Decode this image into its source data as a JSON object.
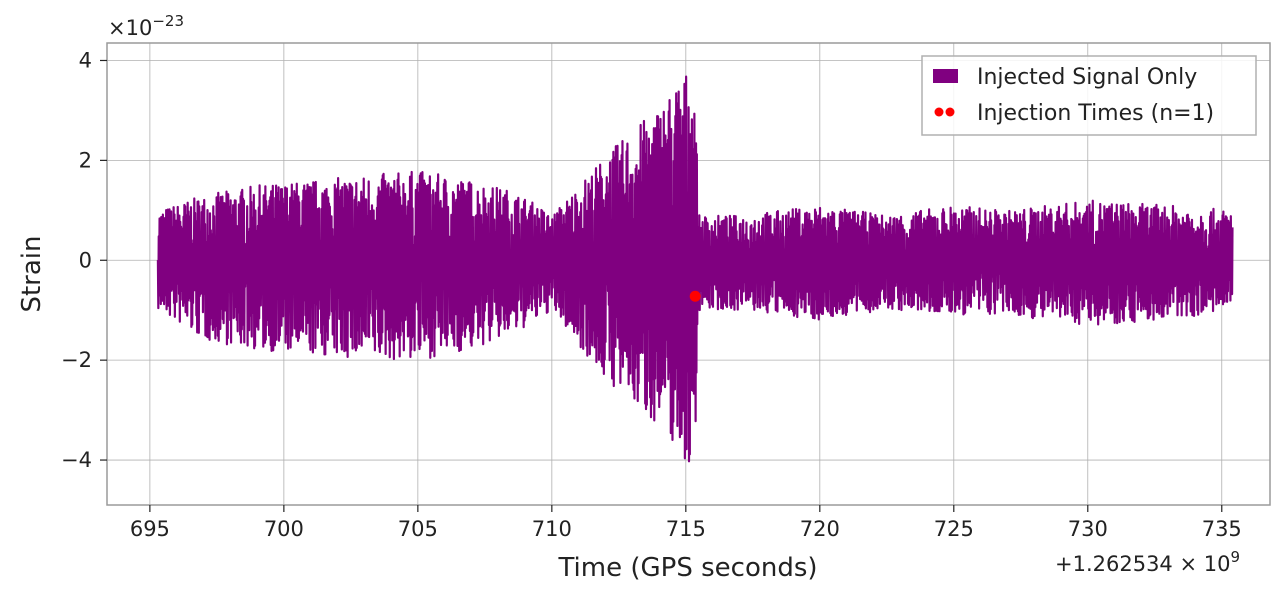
{
  "chart_data": {
    "type": "line",
    "xlabel": "Time (GPS seconds)",
    "ylabel": "Strain",
    "x_offset_label": "+1.262534 × 10",
    "x_offset_exp": "9",
    "x_offset": 1262534000,
    "y_scale_label": "×10",
    "y_scale_exp": "−23",
    "xlim": [
      693.4,
      736.8
    ],
    "ylim": [
      -4.9,
      4.35
    ],
    "x_ticks": [
      695,
      700,
      705,
      710,
      715,
      720,
      725,
      730,
      735
    ],
    "x_tick_labels": [
      "695",
      "700",
      "705",
      "710",
      "715",
      "720",
      "725",
      "730",
      "735"
    ],
    "y_ticks": [
      -4,
      -2,
      0,
      2,
      4
    ],
    "y_tick_labels": [
      "−4",
      "−2",
      "0",
      "2",
      "4"
    ],
    "grid": true,
    "legend_position": "top-right",
    "series": [
      {
        "name": "Injected Signal Only",
        "kind": "line",
        "color": "#800080",
        "x_range": [
          695.3,
          735.4
        ],
        "envelope_x": [
          695.3,
          697,
          699,
          701,
          703,
          705,
          707,
          708.5,
          709.5,
          710,
          711,
          712,
          713,
          714,
          714.8,
          715.3,
          715.5,
          717,
          720,
          722.5,
          725,
          727,
          730,
          733,
          735.4
        ],
        "envelope_upper": [
          1.0,
          1.3,
          1.5,
          1.6,
          1.7,
          1.8,
          1.6,
          1.4,
          1.1,
          0.9,
          1.5,
          2.1,
          2.6,
          3.1,
          3.7,
          3.9,
          0.9,
          0.9,
          1.1,
          0.9,
          1.1,
          1.0,
          1.2,
          1.1,
          1.0
        ],
        "envelope_lower": [
          -1.0,
          -1.6,
          -1.8,
          -1.9,
          -2.0,
          -2.0,
          -1.8,
          -1.5,
          -1.2,
          -1.0,
          -1.7,
          -2.4,
          -2.9,
          -3.3,
          -3.9,
          -4.4,
          -1.0,
          -1.0,
          -1.2,
          -1.0,
          -1.1,
          -1.1,
          -1.3,
          -1.2,
          -1.0
        ]
      },
      {
        "name": "Injection Times (n=1)",
        "kind": "scatter",
        "color": "#ff0000",
        "points": [
          {
            "x": 715.35,
            "y": -0.72
          }
        ]
      }
    ]
  }
}
